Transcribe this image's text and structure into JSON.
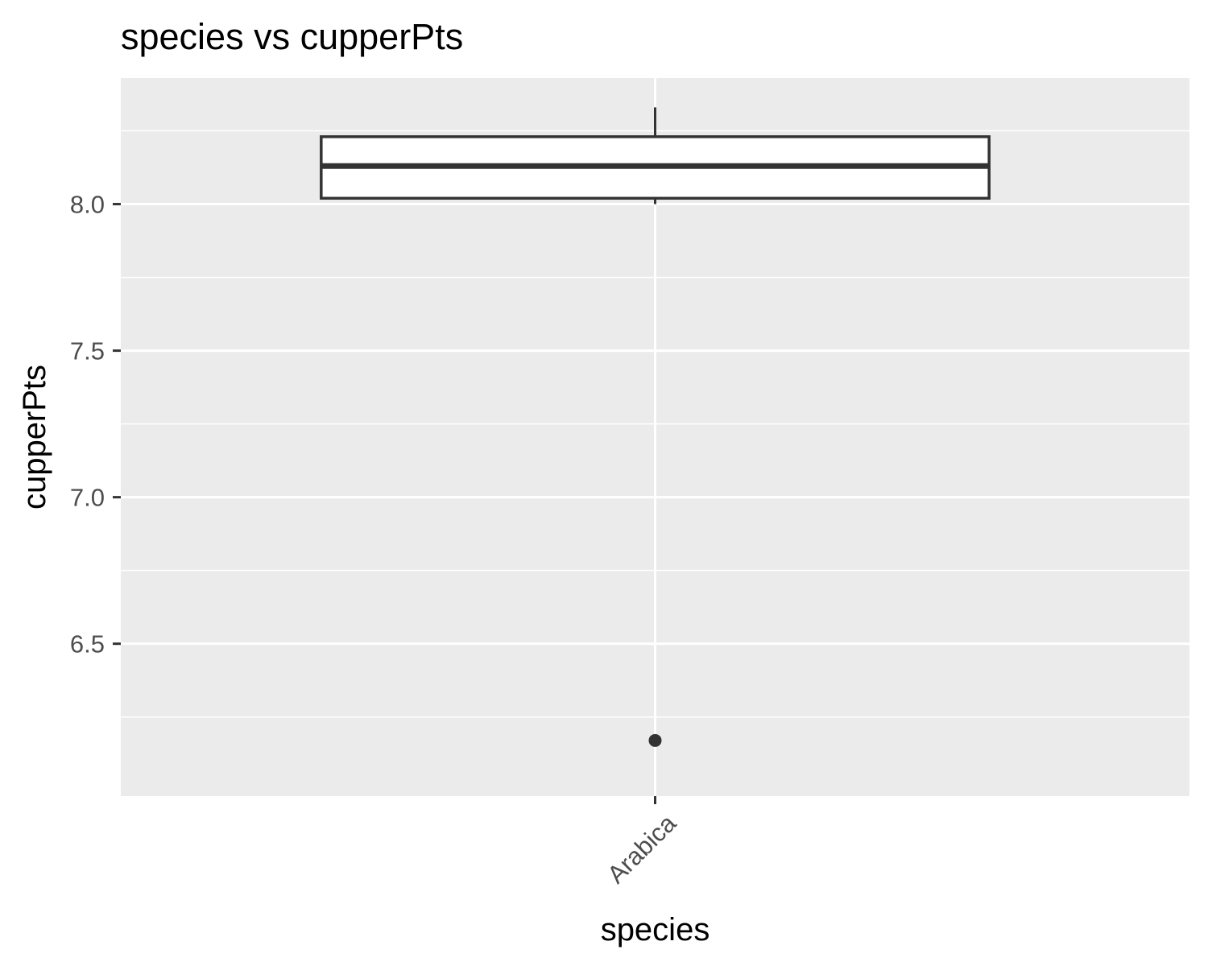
{
  "chart_data": {
    "type": "boxplot",
    "title": "species vs cupperPts",
    "xlabel": "species",
    "ylabel": "cupperPts",
    "categories": [
      "Arabica"
    ],
    "boxes": [
      {
        "category": "Arabica",
        "whisker_low": 8.0,
        "q1": 8.02,
        "median": 8.13,
        "q3": 8.23,
        "whisker_high": 8.33,
        "outliers": [
          6.17
        ]
      }
    ],
    "ylim": [
      5.98,
      8.43
    ],
    "y_ticks": [
      6.5,
      7.0,
      7.5,
      8.0
    ],
    "y_tick_labels": [
      "6.5",
      "7.0",
      "7.5",
      "8.0"
    ],
    "y_minor_ticks": [
      6.25,
      6.75,
      7.25,
      7.75,
      8.25
    ],
    "x_tick_rotation_deg": -45,
    "grid": true,
    "legend": "none",
    "colors": {
      "panel_background": "#ebebeb",
      "grid_line": "#ffffff",
      "box_fill": "#ffffff",
      "box_stroke": "#333333",
      "tick_label": "#4d4d4d",
      "axis_title": "#000000"
    }
  }
}
